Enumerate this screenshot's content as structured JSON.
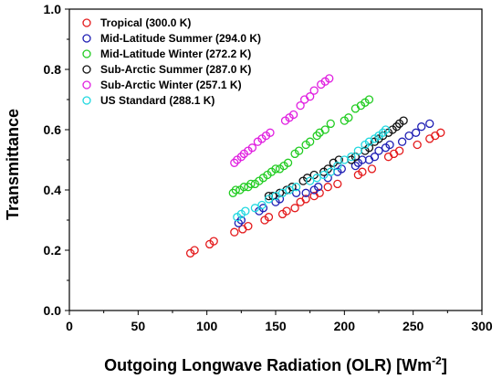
{
  "chart_data": {
    "type": "scatter",
    "title": "",
    "xlabel": "Outgoing Longwave Radiation (OLR) [Wm",
    "xlabel_sup": "-2",
    "xlabel_close": "]",
    "ylabel": "Transmittance",
    "xlim": [
      0,
      300
    ],
    "ylim": [
      0.0,
      1.0
    ],
    "x_ticks": [
      "0",
      "50",
      "100",
      "150",
      "200",
      "250",
      "300"
    ],
    "y_ticks": [
      "0.0",
      "0.2",
      "0.4",
      "0.6",
      "0.8",
      "1.0"
    ],
    "grid": false,
    "legend_position": "top-left",
    "marker": "open-circle",
    "series": [
      {
        "name": "Tropical (300.0 K)",
        "color": "#e41a1c",
        "x": [
          88,
          91,
          102,
          105,
          120,
          126,
          130,
          142,
          145,
          155,
          158,
          164,
          168,
          172,
          178,
          182,
          188,
          195,
          210,
          213,
          220,
          232,
          236,
          240,
          253,
          262,
          266,
          270
        ],
        "y": [
          0.19,
          0.2,
          0.22,
          0.23,
          0.26,
          0.27,
          0.28,
          0.3,
          0.31,
          0.32,
          0.33,
          0.34,
          0.36,
          0.37,
          0.38,
          0.39,
          0.41,
          0.42,
          0.45,
          0.46,
          0.47,
          0.51,
          0.52,
          0.53,
          0.55,
          0.57,
          0.58,
          0.59
        ]
      },
      {
        "name": "Mid-Latitude Summer (294.0 K)",
        "color": "#1f1fb4",
        "x": [
          123,
          125,
          138,
          141,
          150,
          153,
          165,
          172,
          178,
          181,
          188,
          195,
          198,
          208,
          210,
          213,
          218,
          222,
          225,
          230,
          233,
          242,
          247,
          252,
          256,
          262
        ],
        "y": [
          0.29,
          0.3,
          0.33,
          0.34,
          0.36,
          0.37,
          0.39,
          0.39,
          0.4,
          0.41,
          0.44,
          0.46,
          0.47,
          0.48,
          0.49,
          0.5,
          0.5,
          0.51,
          0.53,
          0.54,
          0.55,
          0.56,
          0.58,
          0.59,
          0.61,
          0.62
        ]
      },
      {
        "name": "Mid-Latitude Winter (272.2 K)",
        "color": "#22cc22",
        "x": [
          119,
          121,
          124,
          127,
          130,
          132,
          135,
          138,
          141,
          144,
          147,
          150,
          153,
          156,
          159,
          164,
          167,
          172,
          175,
          180,
          182,
          186,
          190,
          200,
          203,
          208,
          212,
          215,
          218
        ],
        "y": [
          0.39,
          0.4,
          0.4,
          0.41,
          0.41,
          0.42,
          0.42,
          0.43,
          0.44,
          0.45,
          0.46,
          0.47,
          0.47,
          0.48,
          0.49,
          0.52,
          0.53,
          0.55,
          0.56,
          0.58,
          0.59,
          0.6,
          0.62,
          0.63,
          0.64,
          0.67,
          0.68,
          0.69,
          0.7
        ]
      },
      {
        "name": "Sub-Arctic Summer (287.0 K)",
        "color": "#111111",
        "x": [
          145,
          148,
          153,
          158,
          162,
          170,
          173,
          178,
          185,
          188,
          192,
          196,
          205,
          208,
          215,
          218,
          222,
          225,
          228,
          232,
          235,
          238,
          240,
          243
        ],
        "y": [
          0.38,
          0.38,
          0.39,
          0.4,
          0.41,
          0.43,
          0.44,
          0.45,
          0.46,
          0.47,
          0.49,
          0.5,
          0.5,
          0.51,
          0.53,
          0.54,
          0.56,
          0.57,
          0.58,
          0.59,
          0.6,
          0.61,
          0.62,
          0.63
        ]
      },
      {
        "name": "Sub-Arctic Winter (257.1 K)",
        "color": "#e020e0",
        "x": [
          120,
          122,
          125,
          127,
          130,
          133,
          137,
          140,
          143,
          146,
          157,
          160,
          163,
          168,
          171,
          175,
          178,
          183,
          186,
          189
        ],
        "y": [
          0.49,
          0.5,
          0.51,
          0.52,
          0.53,
          0.54,
          0.56,
          0.57,
          0.58,
          0.59,
          0.63,
          0.64,
          0.65,
          0.68,
          0.7,
          0.71,
          0.73,
          0.75,
          0.76,
          0.77
        ]
      },
      {
        "name": "US Standard (288.1 K)",
        "color": "#20d8e0",
        "x": [
          122,
          125,
          128,
          135,
          140,
          145,
          150,
          155,
          160,
          165,
          175,
          180,
          185,
          190,
          195,
          200,
          205,
          210,
          215,
          218,
          222,
          225,
          228,
          230
        ],
        "y": [
          0.31,
          0.32,
          0.33,
          0.34,
          0.35,
          0.37,
          0.38,
          0.39,
          0.4,
          0.41,
          0.43,
          0.44,
          0.45,
          0.46,
          0.48,
          0.5,
          0.51,
          0.53,
          0.55,
          0.56,
          0.57,
          0.58,
          0.59,
          0.6
        ]
      }
    ]
  }
}
